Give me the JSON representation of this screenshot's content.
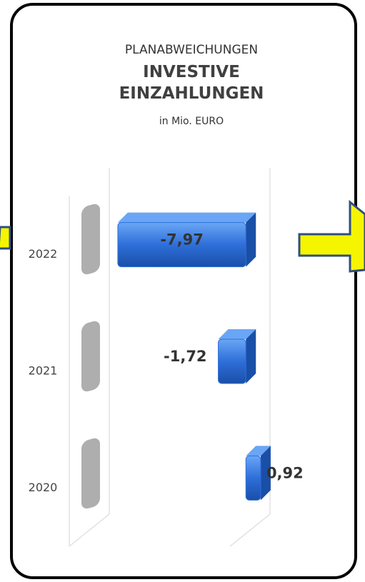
{
  "chart_data": {
    "type": "bar",
    "title": "PLANABWEICHUNGEN",
    "subtitle": "INVESTIVE EINZAHLUNGEN",
    "unit_label": "in Mio. EURO",
    "categories": [
      "2022",
      "2021",
      "2020"
    ],
    "values": [
      -7.97,
      -1.72,
      0.92
    ],
    "value_labels": [
      "-7,97",
      "-1,72",
      "0,92"
    ],
    "color": "#2e6fd9",
    "xlim": [
      -8.5,
      1.5
    ]
  }
}
